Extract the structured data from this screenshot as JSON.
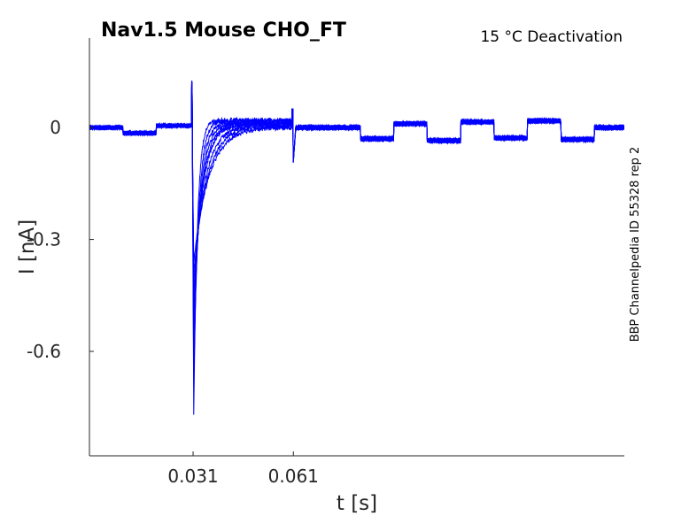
{
  "title": "Nav1.5  Mouse  CHO_FT",
  "subtitle": "15 °C  Deactivation",
  "side_label": "BBP Channelpedia ID 55328 rep 2",
  "colors": {
    "trace": "#0000ff",
    "axis": "#262626"
  },
  "chart_data": {
    "type": "line",
    "xlabel": "t [s]",
    "ylabel": "I [nA]",
    "xlim": [
      0.0,
      0.16
    ],
    "ylim": [
      -0.88,
      0.24
    ],
    "xticks": [
      0.031,
      0.061
    ],
    "xtick_labels": [
      "0.031",
      "0.061"
    ],
    "yticks": [
      0,
      -0.3,
      -0.6
    ],
    "ytick_labels": [
      "0",
      "-0.3",
      "-0.6"
    ],
    "grid": false,
    "legend": "none",
    "sweep_count": 9,
    "sweep_tail_end_s": [
      0.034,
      0.035,
      0.036,
      0.037,
      0.038,
      0.039,
      0.041,
      0.043,
      0.045
    ],
    "sweep_peak_nA": [
      -0.77,
      -0.69,
      -0.61,
      -0.55,
      -0.5,
      -0.46,
      -0.42,
      -0.39,
      -0.36
    ],
    "post_step_levels_nA": [
      0.02,
      0.018,
      0.015,
      0.012,
      0.01,
      0.008,
      0.005,
      0.003,
      0.0
    ],
    "test_pulses": [
      {
        "t0": 0.0,
        "t1": 0.01,
        "level": 0.0
      },
      {
        "t0": 0.01,
        "t1": 0.02,
        "level": -0.015
      },
      {
        "t0": 0.02,
        "t1": 0.0305,
        "level": 0.005
      },
      {
        "t0": 0.0605,
        "t1": 0.081,
        "level": 0.0
      },
      {
        "t0": 0.081,
        "t1": 0.091,
        "level": -0.03
      },
      {
        "t0": 0.091,
        "t1": 0.101,
        "level": 0.01
      },
      {
        "t0": 0.101,
        "t1": 0.111,
        "level": -0.035
      },
      {
        "t0": 0.111,
        "t1": 0.121,
        "level": 0.015
      },
      {
        "t0": 0.121,
        "t1": 0.131,
        "level": -0.028
      },
      {
        "t0": 0.131,
        "t1": 0.141,
        "level": 0.018
      },
      {
        "t0": 0.141,
        "t1": 0.151,
        "level": -0.032
      },
      {
        "t0": 0.151,
        "t1": 0.16,
        "level": 0.0
      }
    ]
  }
}
